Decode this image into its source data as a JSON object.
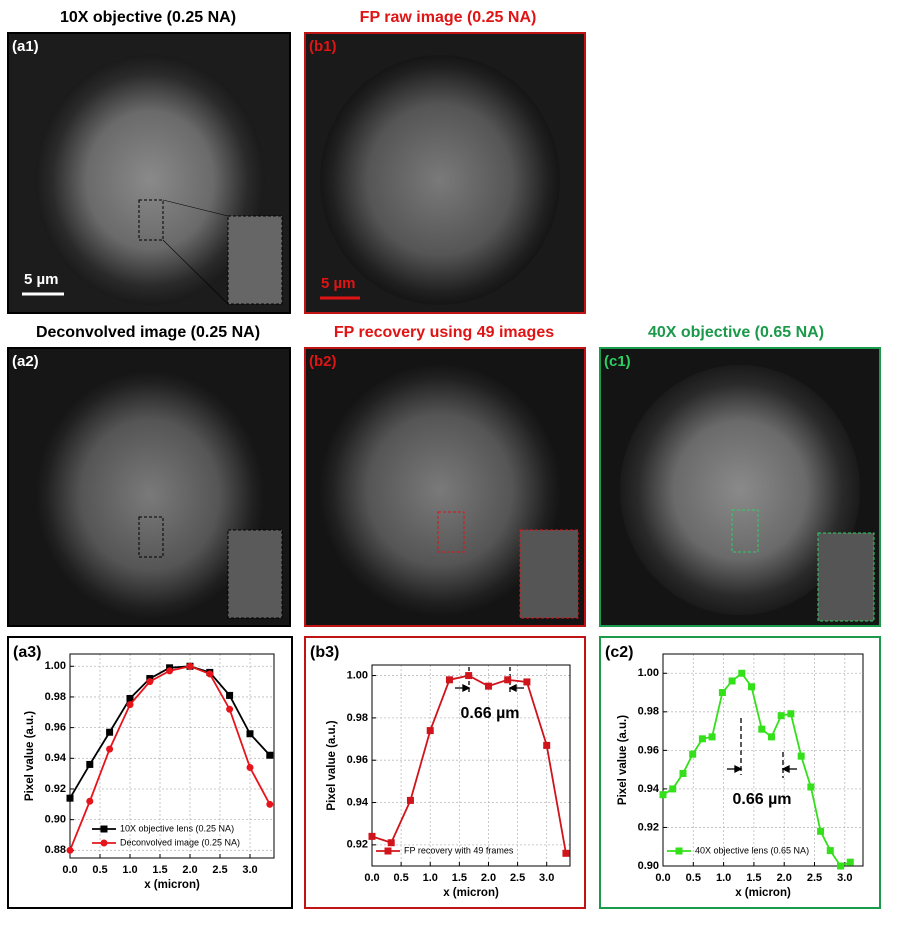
{
  "panels": [
    {
      "title": "10X objective (0.25 NA)",
      "label": "(a1)",
      "scale_bar": "5 µm"
    },
    {
      "title": "FP raw image (0.25 NA)",
      "label": "(b1)",
      "scale_bar": "5 µm"
    },
    {
      "title": "Deconvolved image (0.25 NA)",
      "label": "(a2)"
    },
    {
      "title": "FP recovery using 49 images",
      "label": "(b2)"
    },
    {
      "title": "40X objective (0.65 NA)",
      "label": "(c1)"
    }
  ],
  "chart_data": [
    {
      "type": "line",
      "panel_label": "(a3)",
      "xlabel": "x (micron)",
      "ylabel": "Pixel value (a.u.)",
      "x": [
        0,
        0.33,
        0.66,
        1.0,
        1.33,
        1.66,
        2.0,
        2.33,
        2.66,
        3.0,
        3.33
      ],
      "series": [
        {
          "name": "10X objective lens (0.25 NA)",
          "color": "#000000",
          "marker": "square",
          "values": [
            0.914,
            0.936,
            0.957,
            0.979,
            0.992,
            0.999,
            1.0,
            0.996,
            0.981,
            0.956,
            0.942
          ]
        },
        {
          "name": "Deconvolved image (0.25 NA)",
          "color": "#e8141b",
          "marker": "circle",
          "values": [
            0.88,
            0.912,
            0.946,
            0.975,
            0.99,
            0.997,
            1.0,
            0.995,
            0.972,
            0.934,
            0.91
          ]
        }
      ],
      "xlim": [
        0,
        3.4
      ],
      "ylim": [
        0.875,
        1.008
      ],
      "xticks": [
        {
          "value": 0,
          "label": "0.0"
        },
        0.5,
        {
          "value": 1,
          "label": "1.0"
        },
        1.5,
        {
          "value": 2,
          "label": "2.0"
        },
        2.5,
        {
          "value": 3,
          "label": "3.0"
        }
      ],
      "yticks": [
        0.88,
        {
          "value": 0.9,
          "label": "0.90"
        },
        0.92,
        0.94,
        0.96,
        0.98,
        {
          "value": 1,
          "label": "1.00"
        }
      ],
      "grid": true,
      "legend": "lower center"
    },
    {
      "type": "line",
      "panel_label": "(b3)",
      "xlabel": "x (micron)",
      "ylabel": "Pixel value (a.u.)",
      "annotation": "0.66 µm",
      "x": [
        0,
        0.33,
        0.66,
        1.0,
        1.33,
        1.66,
        2.0,
        2.33,
        2.66,
        3.0,
        3.33
      ],
      "series": [
        {
          "name": "FP recovery with 49 frames",
          "color": "#d0141b",
          "marker": "square",
          "values": [
            0.924,
            0.921,
            0.941,
            0.974,
            0.998,
            1.0,
            0.995,
            0.998,
            0.997,
            0.967,
            0.916
          ]
        }
      ],
      "xlim": [
        0,
        3.4
      ],
      "ylim": [
        0.91,
        1.005
      ],
      "xticks": [
        {
          "value": 0,
          "label": "0.0"
        },
        0.5,
        {
          "value": 1,
          "label": "1.0"
        },
        1.5,
        {
          "value": 2,
          "label": "2.0"
        },
        2.5,
        {
          "value": 3,
          "label": "3.0"
        }
      ],
      "yticks": [
        0.92,
        0.94,
        0.96,
        0.98,
        {
          "value": 1,
          "label": "1.00"
        }
      ],
      "grid": true,
      "legend": "lower left"
    },
    {
      "type": "line",
      "panel_label": "(c2)",
      "xlabel": "x (micron)",
      "ylabel": "Pixel value (a.u.)",
      "annotation": "0.66 µm",
      "x": [
        0,
        0.16,
        0.33,
        0.49,
        0.65,
        0.81,
        0.98,
        1.14,
        1.3,
        1.46,
        1.63,
        1.79,
        1.95,
        2.11,
        2.28,
        2.44,
        2.6,
        2.76,
        2.93,
        3.09
      ],
      "series": [
        {
          "name": "40X objective lens (0.65 NA)",
          "color": "#33e01a",
          "marker": "square",
          "values": [
            0.937,
            0.94,
            0.948,
            0.958,
            0.966,
            0.967,
            0.99,
            0.996,
            1.0,
            0.993,
            0.971,
            0.967,
            0.978,
            0.979,
            0.957,
            0.941,
            0.918,
            0.908,
            0.9,
            0.902
          ]
        }
      ],
      "xlim": [
        0,
        3.3
      ],
      "ylim": [
        0.9,
        1.01
      ],
      "xticks": [
        {
          "value": 0,
          "label": "0.0"
        },
        0.5,
        {
          "value": 1,
          "label": "1.0"
        },
        1.5,
        {
          "value": 2,
          "label": "2.0"
        },
        2.5,
        {
          "value": 3,
          "label": "3.0"
        }
      ],
      "yticks": [
        {
          "value": 0.9,
          "label": "0.90"
        },
        0.92,
        0.94,
        0.96,
        0.98,
        {
          "value": 1,
          "label": "1.00"
        }
      ],
      "grid": true,
      "legend": "lower left"
    }
  ]
}
